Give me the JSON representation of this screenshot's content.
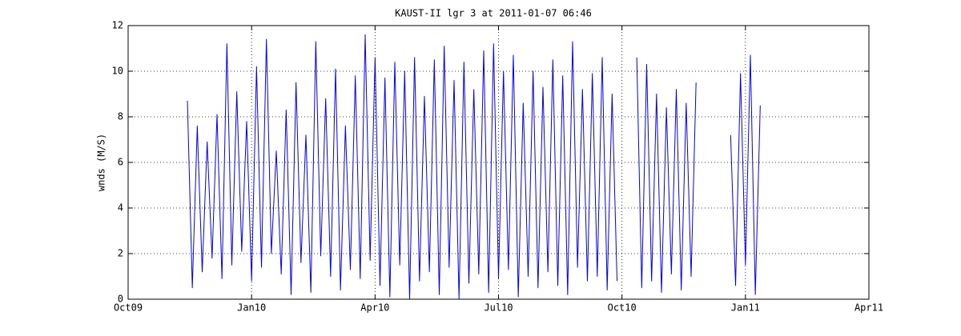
{
  "chart_data": {
    "type": "line",
    "title": "KAUST-II lgr 3 at 2011-01-07 06:46",
    "y_label": "wnds (M/S)",
    "grid": true,
    "series": [
      {
        "name": "wnds",
        "color": "#0000ff",
        "x": [
          2009.87,
          2009.88,
          2009.89,
          2009.9,
          2009.91,
          2009.92,
          2009.93,
          2009.94,
          2009.95,
          2009.96,
          2009.97,
          2009.98,
          2009.99,
          2010.0,
          2010.01,
          2010.02,
          2010.03,
          2010.04,
          2010.05,
          2010.06,
          2010.07,
          2010.08,
          2010.09,
          2010.1,
          2010.11,
          2010.12,
          2010.13,
          2010.14,
          2010.15,
          2010.16,
          2010.17,
          2010.18,
          2010.19,
          2010.2,
          2010.21,
          2010.22,
          2010.23,
          2010.24,
          2010.25,
          2010.26,
          2010.27,
          2010.28,
          2010.29,
          2010.3,
          2010.31,
          2010.32,
          2010.33,
          2010.34,
          2010.35,
          2010.36,
          2010.37,
          2010.38,
          2010.39,
          2010.4,
          2010.41,
          2010.42,
          2010.43,
          2010.44,
          2010.45,
          2010.46,
          2010.47,
          2010.48,
          2010.49,
          2010.5,
          2010.51,
          2010.52,
          2010.53,
          2010.54,
          2010.55,
          2010.56,
          2010.57,
          2010.58,
          2010.59,
          2010.6,
          2010.61,
          2010.62,
          2010.63,
          2010.64,
          2010.65,
          2010.66,
          2010.67,
          2010.68,
          2010.69,
          2010.7,
          2010.71,
          2010.72,
          2010.73,
          2010.74,
          2010.75,
          2010.76,
          2010.77,
          2010.78,
          2010.79,
          2010.8,
          2010.81,
          2010.82,
          2010.83,
          2010.84,
          2010.85,
          2010.86,
          2010.87,
          2010.88,
          2010.89,
          2010.9,
          2010.91,
          2010.92,
          2010.93,
          2010.94,
          2010.95,
          2010.96,
          2010.97,
          2010.98,
          2010.99,
          2011.0,
          2011.01,
          2011.02,
          2011.03
        ],
        "values": [
          8.7,
          0.5,
          7.6,
          1.2,
          6.9,
          1.8,
          8.1,
          0.9,
          11.2,
          1.5,
          9.1,
          2.1,
          7.8,
          0.8,
          10.2,
          1.4,
          11.4,
          2.0,
          6.5,
          1.1,
          8.3,
          0.2,
          9.5,
          1.6,
          7.2,
          0.3,
          11.3,
          1.9,
          8.8,
          1.0,
          10.1,
          0.4,
          7.6,
          1.3,
          9.8,
          0.9,
          11.6,
          1.7,
          10.6,
          0.6,
          9.7,
          0.1,
          10.4,
          1.5,
          10.0,
          0.0,
          10.6,
          0.8,
          8.9,
          1.2,
          10.5,
          0.2,
          11.1,
          1.4,
          9.6,
          0.0,
          10.4,
          0.7,
          9.2,
          1.1,
          10.9,
          0.3,
          11.2,
          0.9,
          10.0,
          1.3,
          10.7,
          0.1,
          8.6,
          1.0,
          10.0,
          0.5,
          9.3,
          1.2,
          10.5,
          0.6,
          9.8,
          0.2,
          11.3,
          1.4,
          9.2,
          0.8,
          9.9,
          1.0,
          10.6,
          0.4,
          9.0,
          0.8,
          null,
          null,
          null,
          10.6,
          0.5,
          10.3,
          0.8,
          9.0,
          0.3,
          8.4,
          1.1,
          9.2,
          0.4,
          8.6,
          1.0,
          9.5,
          null,
          null,
          null,
          null,
          null,
          null,
          7.2,
          0.6,
          9.9,
          1.5,
          10.7,
          0.2,
          8.5
        ]
      }
    ],
    "xlim": [
      2009.75,
      2011.25
    ],
    "xticks": [
      {
        "value": 2009.75,
        "label": "Oct09"
      },
      {
        "value": 2010.0,
        "label": "Jan10"
      },
      {
        "value": 2010.25,
        "label": "Apr10"
      },
      {
        "value": 2010.5,
        "label": "Jul10"
      },
      {
        "value": 2010.75,
        "label": "Oct10"
      },
      {
        "value": 2011.0,
        "label": "Jan11"
      },
      {
        "value": 2011.25,
        "label": "Apr11"
      }
    ],
    "ylim": [
      0,
      12
    ],
    "yticks": [
      0,
      2,
      4,
      6,
      8,
      10,
      12
    ]
  }
}
